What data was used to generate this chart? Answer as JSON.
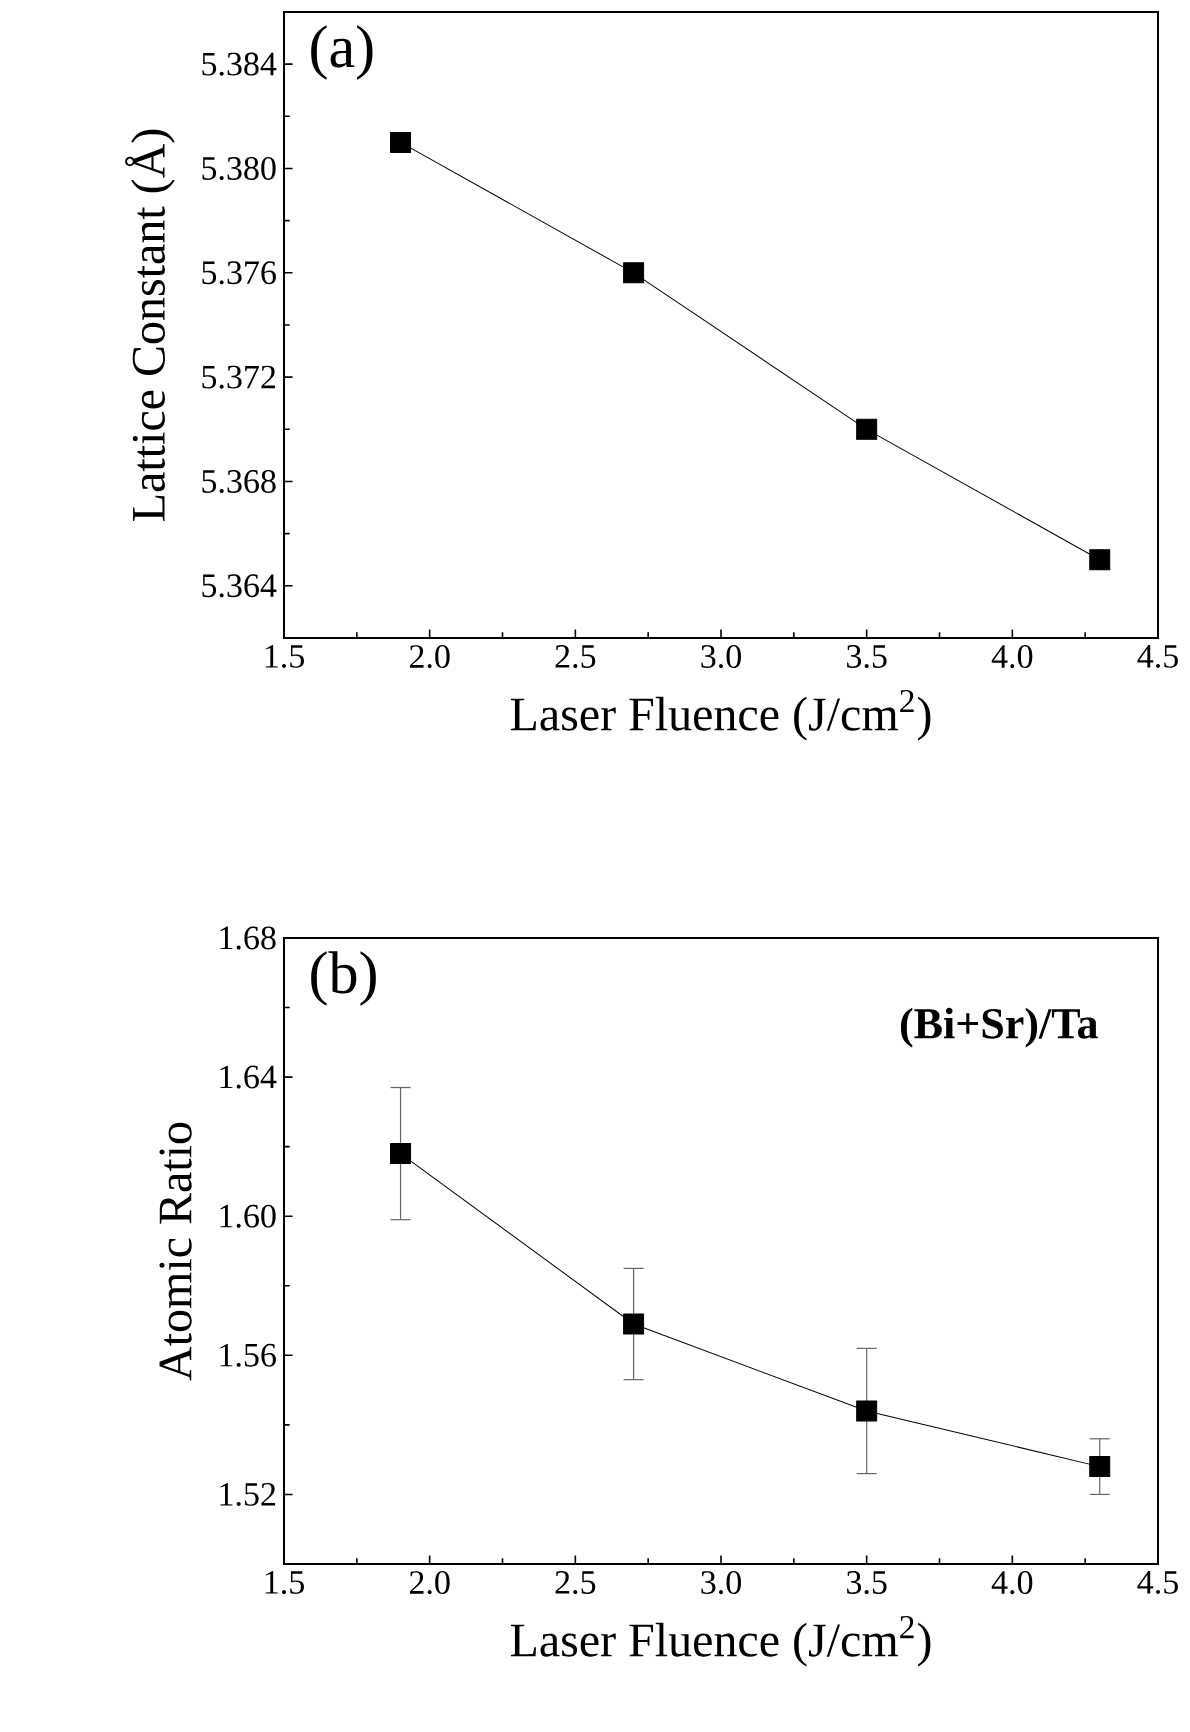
{
  "chart_data": [
    {
      "type": "line",
      "xlabel": "Laser Fluence (J/cm$^{2}$)",
      "ylabel": "Lattice Constant (Å)",
      "annotations": [
        "(a)"
      ],
      "x": [
        1.9,
        2.7,
        3.5,
        4.3
      ],
      "series": [
        {
          "color": "#000000",
          "values": [
            5.381,
            5.376,
            5.37,
            5.365
          ]
        }
      ],
      "xlim": [
        1.5,
        4.5
      ],
      "ylim": [
        5.362,
        5.386
      ],
      "xticks": [
        1.5,
        {
          "value": 2,
          "label": "2.0"
        },
        2.5,
        {
          "value": 3,
          "label": "3.0"
        },
        3.5,
        {
          "value": 4,
          "label": "4.0"
        },
        4.5
      ],
      "yticks": [
        5.364,
        5.368,
        5.372,
        5.376,
        {
          "value": 5.38,
          "label": "5.380"
        },
        5.384
      ],
      "marker": "square",
      "line_style": "solid",
      "grid": false
    },
    {
      "type": "line",
      "xlabel": "Laser Fluence (J/cm$^{2}$)",
      "ylabel": "Atomic Ratio",
      "annotations": [
        "(b)",
        "(Bi+Sr)/Ta"
      ],
      "x": [
        1.9,
        2.7,
        3.5,
        4.3
      ],
      "series": [
        {
          "color": "#000000",
          "values": [
            1.618,
            1.569,
            1.544,
            1.528
          ],
          "errors": [
            0.019,
            0.016,
            0.018,
            0.008
          ]
        }
      ],
      "xlim": [
        1.5,
        4.5
      ],
      "ylim": [
        1.5,
        1.68
      ],
      "xticks": [
        1.5,
        {
          "value": 2,
          "label": "2.0"
        },
        2.5,
        {
          "value": 3,
          "label": "3.0"
        },
        3.5,
        {
          "value": 4,
          "label": "4.0"
        },
        4.5
      ],
      "yticks": [
        1.52,
        1.56,
        {
          "value": 1.6,
          "label": "1.60"
        },
        1.64,
        1.68
      ],
      "marker": "square",
      "line_style": "solid",
      "grid": false
    }
  ]
}
